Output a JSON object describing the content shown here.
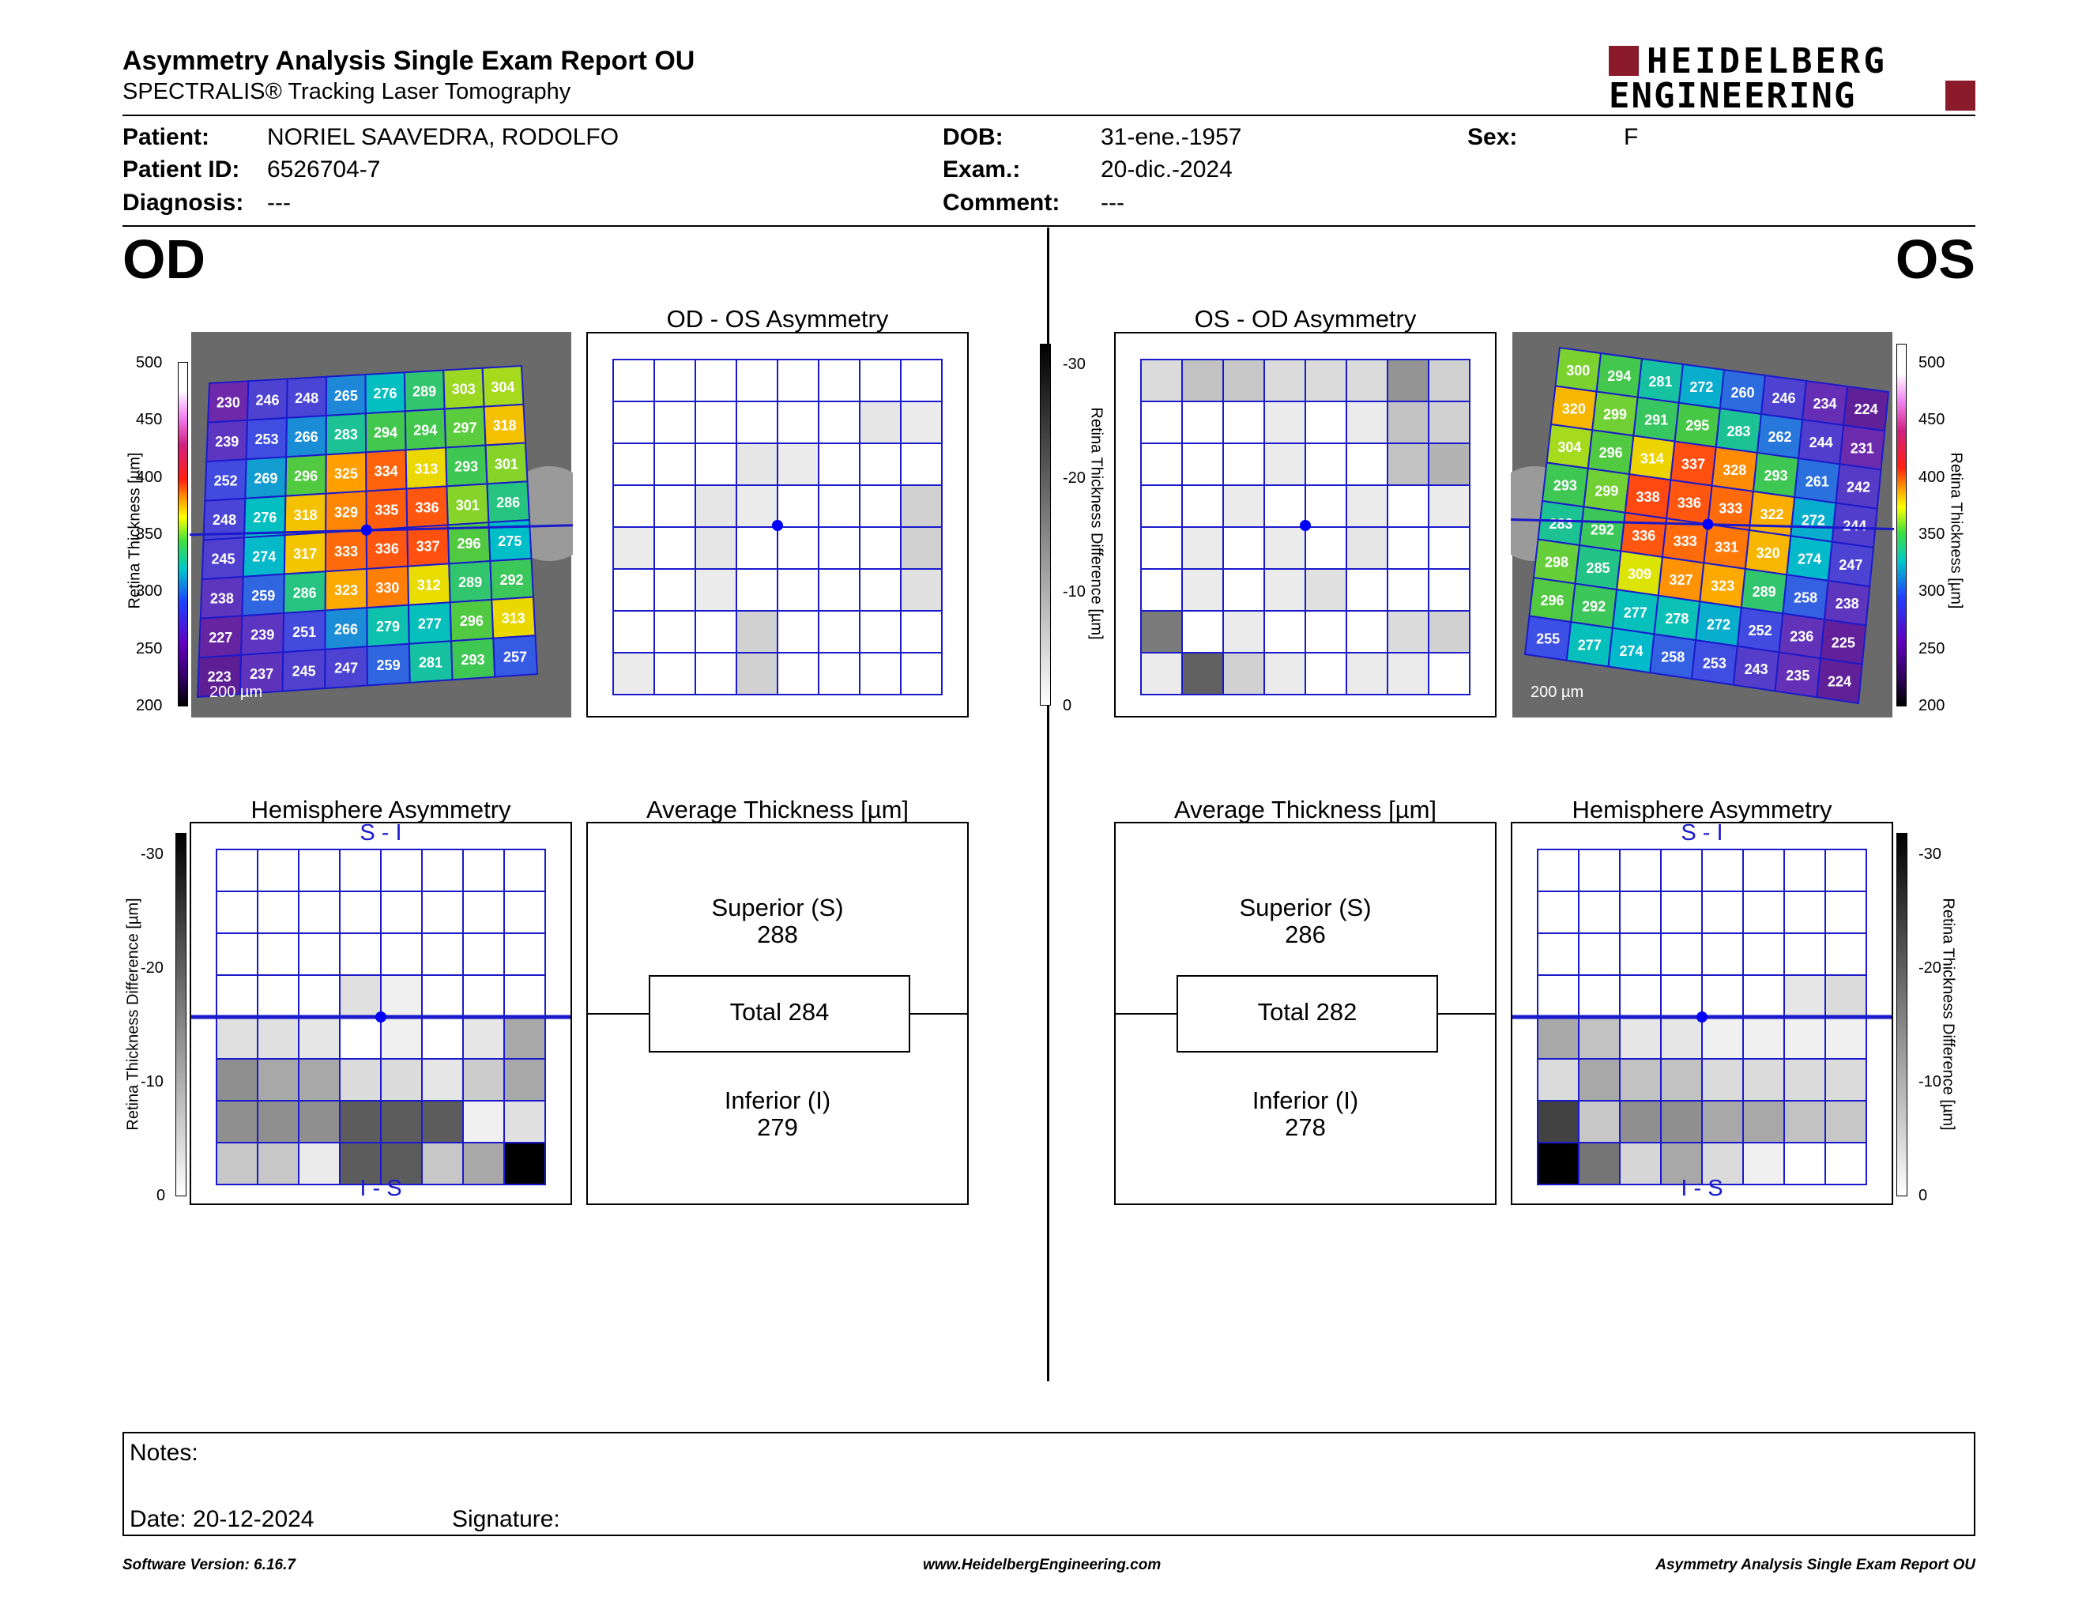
{
  "header": {
    "title": "Asymmetry Analysis Single Exam Report OU",
    "subtitle": "SPECTRALIS® Tracking Laser Tomography",
    "logo_line1": "HEIDELBERG",
    "logo_line2": "ENGINEERING",
    "logo_color": "#8b1a2b"
  },
  "patient": {
    "patient_label": "Patient:",
    "patient_value": "NORIEL SAAVEDRA, RODOLFO",
    "id_label": "Patient ID:",
    "id_value": "6526704-7",
    "diagnosis_label": "Diagnosis:",
    "diagnosis_value": "---",
    "dob_label": "DOB:",
    "dob_value": "31-ene.-1957",
    "exam_label": "Exam.:",
    "exam_value": "20-dic.-2024",
    "comment_label": "Comment:",
    "comment_value": "---",
    "sex_label": "Sex:",
    "sex_value": "F"
  },
  "eyes": {
    "od": "OD",
    "os": "OS"
  },
  "thickness_scale": {
    "ticks": [
      "500",
      "450",
      "400",
      "350",
      "300",
      "250",
      "200"
    ],
    "axis_label": "Retina Thickness [µm]",
    "scale_bar": "200 µm"
  },
  "diff_scale": {
    "ticks": [
      "-30",
      "-20",
      "-10",
      "0"
    ],
    "axis_label": "Retina Thickness Difference [µm]"
  },
  "od_map": [
    [
      "230",
      "246",
      "248",
      "265",
      "276",
      "289",
      "303",
      "304"
    ],
    [
      "239",
      "253",
      "266",
      "283",
      "294",
      "294",
      "297",
      "318"
    ],
    [
      "252",
      "269",
      "296",
      "325",
      "334",
      "313",
      "293",
      "301"
    ],
    [
      "248",
      "276",
      "318",
      "329",
      "335",
      "336",
      "301",
      "286"
    ],
    [
      "245",
      "274",
      "317",
      "333",
      "336",
      "337",
      "296",
      "275"
    ],
    [
      "238",
      "259",
      "286",
      "323",
      "330",
      "312",
      "289",
      "292"
    ],
    [
      "227",
      "239",
      "251",
      "266",
      "279",
      "277",
      "296",
      "313"
    ],
    [
      "223",
      "237",
      "245",
      "247",
      "259",
      "281",
      "293",
      "257"
    ]
  ],
  "os_map": [
    [
      "300",
      "294",
      "281",
      "272",
      "260",
      "246",
      "234",
      "224"
    ],
    [
      "320",
      "299",
      "291",
      "295",
      "283",
      "262",
      "244",
      "231"
    ],
    [
      "304",
      "296",
      "314",
      "337",
      "328",
      "293",
      "261",
      "242"
    ],
    [
      "293",
      "299",
      "338",
      "336",
      "333",
      "322",
      "272",
      "244"
    ],
    [
      "283",
      "292",
      "336",
      "333",
      "331",
      "320",
      "274",
      "247"
    ],
    [
      "298",
      "285",
      "309",
      "327",
      "323",
      "289",
      "258",
      "238"
    ],
    [
      "296",
      "292",
      "277",
      "278",
      "272",
      "252",
      "236",
      "225"
    ],
    [
      "255",
      "277",
      "274",
      "258",
      "253",
      "243",
      "235",
      "224"
    ]
  ],
  "od_os_asymmetry": {
    "title": "OD - OS Asymmetry",
    "cells": [
      [
        0,
        0,
        0,
        0,
        0,
        0,
        0,
        0
      ],
      [
        0,
        0,
        0,
        0,
        0,
        0,
        10,
        8
      ],
      [
        0,
        0,
        0,
        10,
        8,
        0,
        0,
        0
      ],
      [
        0,
        0,
        10,
        8,
        0,
        0,
        0,
        18
      ],
      [
        8,
        0,
        10,
        0,
        0,
        0,
        0,
        18
      ],
      [
        0,
        0,
        8,
        0,
        0,
        0,
        0,
        12
      ],
      [
        0,
        0,
        0,
        18,
        0,
        0,
        0,
        0
      ],
      [
        8,
        0,
        0,
        18,
        0,
        0,
        0,
        0
      ]
    ]
  },
  "os_od_asymmetry": {
    "title": "OS - OD Asymmetry",
    "cells": [
      [
        14,
        24,
        22,
        14,
        14,
        14,
        42,
        18
      ],
      [
        0,
        0,
        0,
        8,
        0,
        8,
        24,
        18
      ],
      [
        0,
        0,
        0,
        8,
        0,
        0,
        24,
        30
      ],
      [
        0,
        0,
        8,
        0,
        0,
        8,
        0,
        8
      ],
      [
        0,
        8,
        0,
        8,
        0,
        10,
        0,
        0
      ],
      [
        0,
        8,
        0,
        8,
        12,
        0,
        0,
        0
      ],
      [
        52,
        0,
        8,
        0,
        0,
        0,
        14,
        18
      ],
      [
        8,
        62,
        18,
        8,
        0,
        8,
        8,
        0
      ]
    ]
  },
  "od_hemisphere": {
    "title": "Hemisphere Asymmetry",
    "top_label": "S - I",
    "bottom_label": "I - S",
    "cells": [
      [
        0,
        0,
        0,
        0,
        0,
        0,
        0,
        0
      ],
      [
        0,
        0,
        0,
        0,
        0,
        0,
        0,
        0
      ],
      [
        0,
        0,
        0,
        0,
        0,
        0,
        0,
        0
      ],
      [
        0,
        0,
        0,
        12,
        6,
        0,
        0,
        0
      ],
      [
        12,
        12,
        10,
        0,
        6,
        0,
        10,
        34
      ],
      [
        44,
        34,
        34,
        14,
        14,
        10,
        20,
        34
      ],
      [
        44,
        44,
        44,
        64,
        64,
        64,
        6,
        12
      ],
      [
        22,
        22,
        8,
        64,
        64,
        22,
        34,
        100
      ]
    ]
  },
  "os_hemisphere": {
    "title": "Hemisphere Asymmetry",
    "top_label": "S - I",
    "bottom_label": "I - S",
    "cells": [
      [
        0,
        0,
        0,
        0,
        0,
        0,
        0,
        0
      ],
      [
        0,
        0,
        0,
        0,
        0,
        0,
        0,
        0
      ],
      [
        0,
        0,
        0,
        0,
        0,
        0,
        0,
        0
      ],
      [
        0,
        0,
        0,
        0,
        0,
        0,
        10,
        14
      ],
      [
        34,
        24,
        10,
        10,
        6,
        6,
        6,
        6
      ],
      [
        14,
        34,
        24,
        24,
        14,
        14,
        14,
        14
      ],
      [
        74,
        22,
        44,
        44,
        34,
        34,
        24,
        22
      ],
      [
        100,
        54,
        16,
        34,
        14,
        6,
        0,
        0
      ]
    ]
  },
  "od_average": {
    "title": "Average Thickness [µm]",
    "superior_label": "Superior (S)",
    "superior_value": "288",
    "total_label": "Total 284",
    "inferior_label": "Inferior (I)",
    "inferior_value": "279"
  },
  "os_average": {
    "title": "Average Thickness [µm]",
    "superior_label": "Superior (S)",
    "superior_value": "286",
    "total_label": "Total 282",
    "inferior_label": "Inferior (I)",
    "inferior_value": "278"
  },
  "notes": {
    "notes_label": "Notes:",
    "date_label": "Date: 20-12-2024",
    "signature_label": "Signature:"
  },
  "footer": {
    "software": "Software Version: 6.16.7",
    "website": "www.HeidelbergEngineering.com",
    "report": "Asymmetry Analysis Single Exam Report OU"
  },
  "colors": {
    "grid_blue": "#1a1acc",
    "fovea_blue": "#0000ff"
  }
}
